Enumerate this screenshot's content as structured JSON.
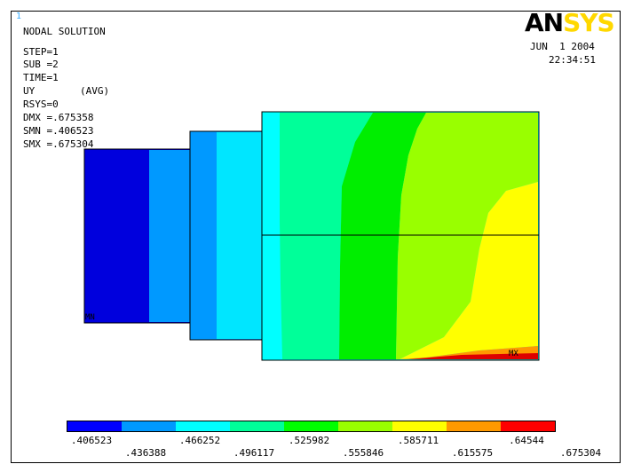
{
  "window_number": "1",
  "logo": {
    "part1": "AN",
    "part2": "SYS"
  },
  "info_lines": [
    "NODAL SOLUTION",
    "STEP=1",
    "SUB =2",
    "TIME=1",
    "UY",
    "(AVG)",
    "RSYS=0",
    "DMX =.675358",
    "SMN =.406523",
    "SMX =.675304"
  ],
  "date": "JUN  1 2004",
  "time": "22:34:51",
  "markers": {
    "min": "MN",
    "max": "MX"
  },
  "colors": {
    "band1": "#0000ff",
    "band2": "#0099ff",
    "band3": "#00ffff",
    "band4": "#00ff99",
    "band5": "#00ff00",
    "band6": "#99ff00",
    "band7": "#ffff00",
    "band8": "#ff9900",
    "band9": "#ff0000",
    "logo_sys": "#ffd800",
    "window_number": "#33aaff"
  },
  "colorbar": {
    "colors": [
      "#0000ff",
      "#0099ff",
      "#00ffff",
      "#00ff99",
      "#00ff00",
      "#99ff00",
      "#ffff00",
      "#ff9900",
      "#ff0000"
    ],
    "top_labels": [
      ".406523",
      ".466252",
      ".525982",
      ".585711",
      ".64544"
    ],
    "bottom_labels": [
      ".436388",
      ".496117",
      ".555846",
      ".615575",
      ".675304"
    ]
  }
}
